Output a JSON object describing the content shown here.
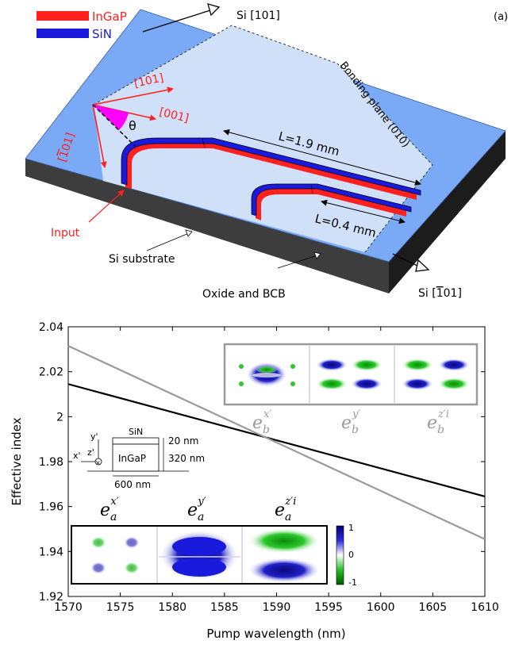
{
  "panel_a": {
    "label": "(a)",
    "legend": [
      {
        "name": "InGaP",
        "color": "#ff2020"
      },
      {
        "name": "SiN",
        "color": "#1a1adc"
      }
    ],
    "axis_top": "Si [101]",
    "axis_bottom": "Si [̅1 01]",
    "axis_bottom_bar": "1",
    "axis_bottom_rest": "01]",
    "axis_bottom_prefix": "Si [",
    "dir_101": "[101]",
    "dir_001": "[001]",
    "dir_m101_bar": "1",
    "dir_m101_prefix": "[",
    "dir_m101_suffix": "01]",
    "theta": "θ",
    "bonding_plane": "Bonding plane (010)",
    "long_length": "L=1.9 mm",
    "short_length": "L=0.4 mm",
    "input": "Input",
    "substrate": "Si substrate",
    "oxide": "Oxide and BCB",
    "colors": {
      "top": "#7aa9f5",
      "light": "#cfe0f8",
      "side": "#3d3d3d",
      "ingap": "#ff2020",
      "sin": "#1a1adc"
    }
  },
  "chart_data": {
    "type": "line",
    "xlabel": "Pump wavelength (nm)",
    "ylabel": "Effective index",
    "xlim": [
      1570,
      1610
    ],
    "ylim": [
      1.92,
      2.04
    ],
    "xticks": [
      1570,
      1575,
      1580,
      1585,
      1590,
      1595,
      1600,
      1605,
      1610
    ],
    "yticks": [
      1.92,
      1.94,
      1.96,
      1.98,
      2,
      2.02,
      2.04
    ],
    "ytick_labels": [
      "1.92",
      "1.94",
      "1.96",
      "1.98",
      "2",
      "2.02",
      "2.04"
    ],
    "series": [
      {
        "x": [
          1570,
          1610
        ],
        "values": [
          2.0145,
          1.9645
        ],
        "color": "#000000"
      },
      {
        "x": [
          1570,
          1610
        ],
        "values": [
          2.0315,
          1.9455
        ],
        "color": "#9a9a9a"
      }
    ]
  },
  "insets": {
    "mode_b": [
      "e",
      "b",
      "x′"
    ],
    "mode_b_labels": [
      {
        "base": "e",
        "sub": "b",
        "sup": "x′"
      },
      {
        "base": "e",
        "sub": "b",
        "sup": "y′"
      },
      {
        "base": "e",
        "sub": "b",
        "sup": "z′i"
      }
    ],
    "mode_a_labels": [
      {
        "base": "e",
        "sub": "a",
        "sup": "x′"
      },
      {
        "base": "e",
        "sub": "a",
        "sup": "y′"
      },
      {
        "base": "e",
        "sub": "a",
        "sup": "z′i"
      }
    ],
    "colorbar_ticks": [
      "1",
      "0",
      "-1"
    ],
    "cross_section": {
      "sin": "SiN",
      "ingap": "InGaP",
      "t_sin": "20 nm",
      "t_ingap": "320 nm",
      "width": "600 nm",
      "y_axis": "y'",
      "x_axis": "x'",
      "z_axis": "z'"
    }
  }
}
